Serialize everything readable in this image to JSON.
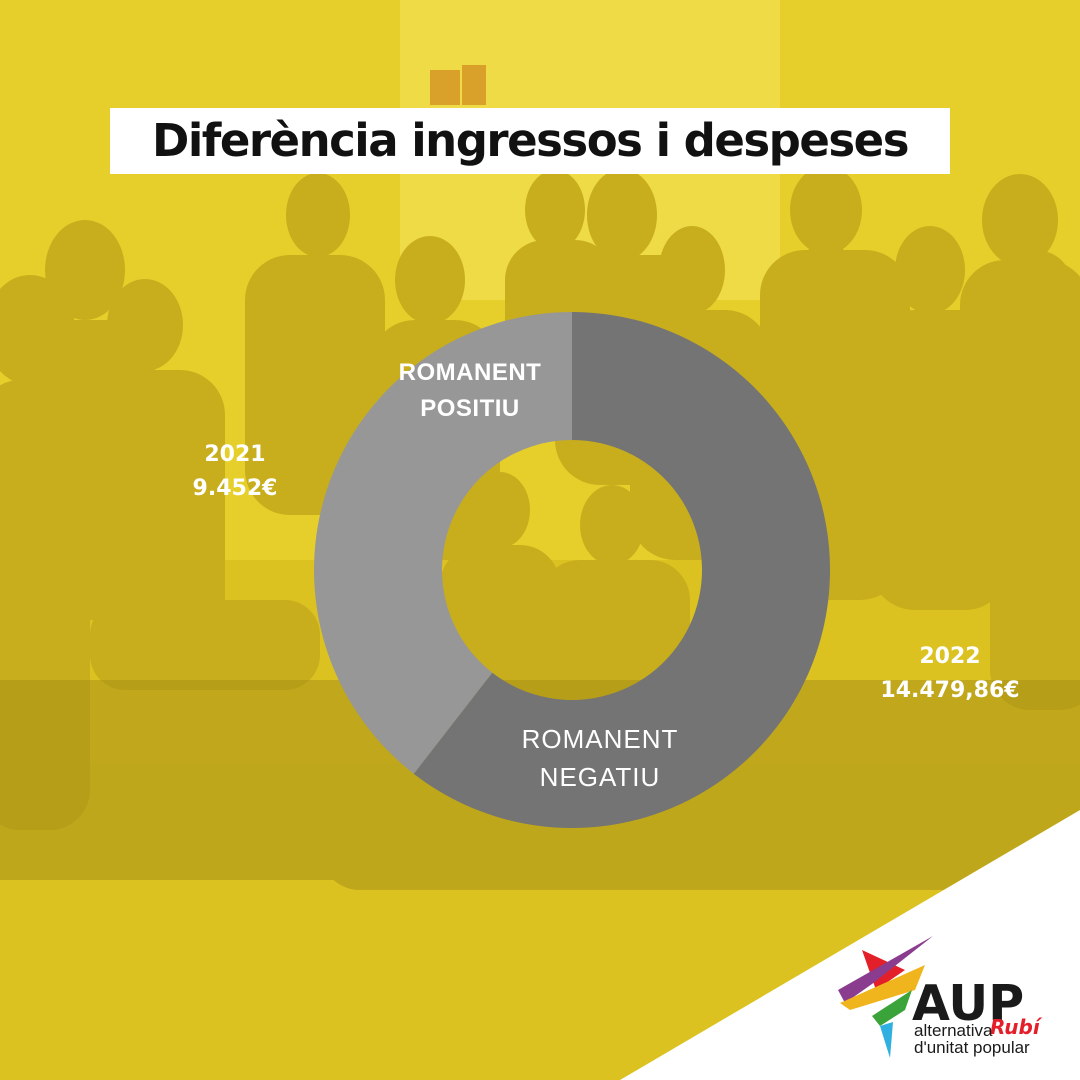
{
  "title": "Diferència ingressos i despeses",
  "colors": {
    "background": "#e8d12e",
    "slice_positive": "#979797",
    "slice_negative": "#747474",
    "text": "#ffffff",
    "brand_red": "#e3202a",
    "brand_purple": "#8a3c8e"
  },
  "chart_data": {
    "type": "pie",
    "variant": "donut",
    "title": "Diferència ingressos i despeses",
    "slices": [
      {
        "label": "ROMANENT POSITIU",
        "label_lines": [
          "ROMANENT",
          "POSITIU"
        ],
        "year": "2021",
        "value": 9452,
        "value_text": "9.452€",
        "color": "#979797"
      },
      {
        "label": "ROMANENT NEGATIU",
        "label_lines": [
          "ROMANENT",
          "NEGATIU"
        ],
        "year": "2022",
        "value": 14479.86,
        "value_text": "14.479,86€",
        "color": "#747474"
      }
    ],
    "legend": "none"
  },
  "logo": {
    "acronym": "AUP",
    "city": "Rubí",
    "line1": "alternativa",
    "line2": "d'unitat popular"
  }
}
